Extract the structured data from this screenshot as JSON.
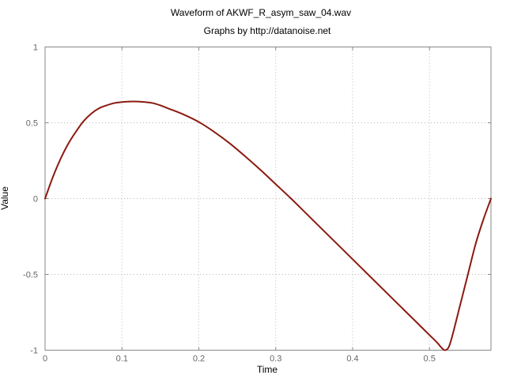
{
  "chart_data": {
    "type": "line",
    "title": "Waveform of AKWF_R_asym_saw_04.wav",
    "subtitle": "Graphs by http://datanoise.net",
    "xlabel": "Time",
    "ylabel": "Value",
    "xlim": [
      0,
      0.58
    ],
    "ylim": [
      -1,
      1
    ],
    "xticks": [
      {
        "value": 0,
        "label": "0"
      },
      {
        "value": 0.1,
        "label": "0.1"
      },
      {
        "value": 0.2,
        "label": "0.2"
      },
      {
        "value": 0.3,
        "label": "0.3"
      },
      {
        "value": 0.4,
        "label": "0.4"
      },
      {
        "value": 0.5,
        "label": "0.5"
      }
    ],
    "yticks": [
      {
        "value": -1,
        "label": "-1"
      },
      {
        "value": -0.5,
        "label": "-0.5"
      },
      {
        "value": 0,
        "label": "0"
      },
      {
        "value": 0.5,
        "label": "0.5"
      },
      {
        "value": 1,
        "label": "1"
      }
    ],
    "grid": true,
    "series": [
      {
        "color": "#8b1a10",
        "x": [
          0,
          0.01,
          0.02,
          0.03,
          0.04,
          0.05,
          0.06,
          0.07,
          0.08,
          0.09,
          0.1,
          0.11,
          0.12,
          0.13,
          0.14,
          0.15,
          0.16,
          0.18,
          0.2,
          0.22,
          0.24,
          0.26,
          0.28,
          0.3,
          0.32,
          0.34,
          0.36,
          0.38,
          0.4,
          0.42,
          0.44,
          0.46,
          0.48,
          0.5,
          0.51,
          0.515,
          0.52,
          0.525,
          0.53,
          0.54,
          0.55,
          0.56,
          0.57,
          0.58
        ],
        "y": [
          0,
          0.14,
          0.26,
          0.36,
          0.44,
          0.51,
          0.56,
          0.595,
          0.615,
          0.63,
          0.637,
          0.64,
          0.64,
          0.637,
          0.63,
          0.615,
          0.595,
          0.555,
          0.505,
          0.44,
          0.365,
          0.28,
          0.19,
          0.095,
          0.0,
          -0.1,
          -0.2,
          -0.3,
          -0.4,
          -0.5,
          -0.6,
          -0.7,
          -0.8,
          -0.9,
          -0.95,
          -0.98,
          -1.0,
          -0.98,
          -0.9,
          -0.7,
          -0.5,
          -0.3,
          -0.14,
          0
        ]
      }
    ]
  }
}
